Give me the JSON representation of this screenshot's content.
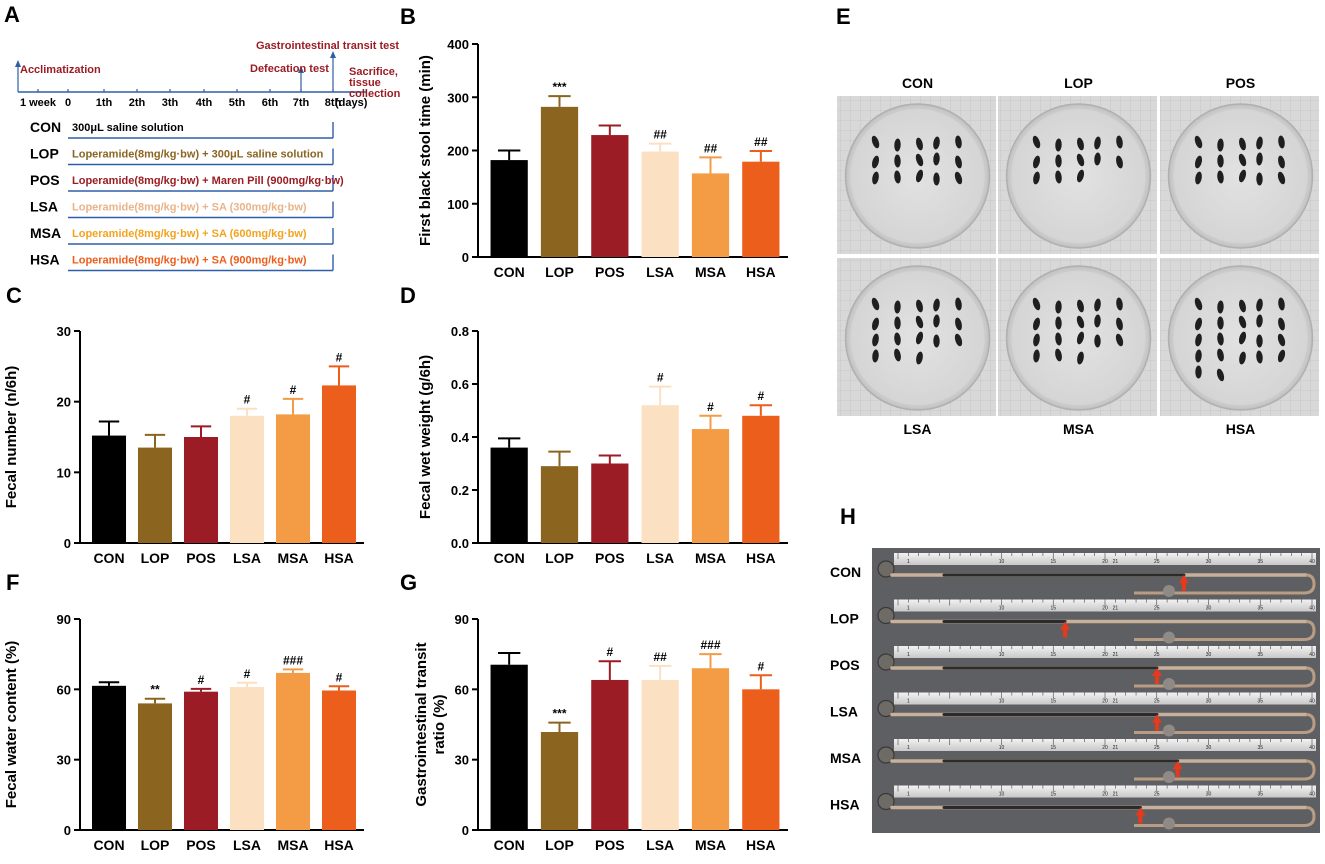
{
  "colors": {
    "CON": "#000000",
    "LOP": "#8B6520",
    "POS": "#9B1C24",
    "LSA": "#FCE0C2",
    "MSA": "#F39C45",
    "HSA": "#EC5E1B",
    "dark_red": "#9B1C24",
    "timeline_blue": "#2F5EA8",
    "arrow": "#E8391C"
  },
  "panel_a": {
    "letter": "A",
    "events": {
      "acclimatization": "Acclimatization",
      "gi_test": "Gastrointestinal transit test",
      "defecation": "Defecation test",
      "sacrifice_1": "Sacrifice,",
      "sacrifice_2": "tissue",
      "sacrifice_3": "collection"
    },
    "ticks": [
      "1 week",
      "0",
      "1th",
      "2th",
      "3th",
      "4th",
      "5th",
      "6th",
      "7th",
      "8th",
      "(days)"
    ],
    "groups": [
      {
        "name": "CON",
        "treatment": "300μL  saline solution",
        "color": "#000000"
      },
      {
        "name": "LOP",
        "treatment": "Loperamide(8mg/kg·bw) + 300μL  saline solution",
        "color": "#8B6520"
      },
      {
        "name": "POS",
        "treatment": "Loperamide(8mg/kg·bw) + Maren Pill (900mg/kg·bw)",
        "color": "#9B1C24"
      },
      {
        "name": "LSA",
        "treatment": "Loperamide(8mg/kg·bw) + SA (300mg/kg·bw)",
        "color": "#E8B48A"
      },
      {
        "name": "MSA",
        "treatment": "Loperamide(8mg/kg·bw) + SA (600mg/kg·bw)",
        "color": "#F2A41E"
      },
      {
        "name": "HSA",
        "treatment": "Loperamide(8mg/kg·bw) + SA (900mg/kg·bw)",
        "color": "#EC5E1B"
      }
    ]
  },
  "chart_data": [
    {
      "id": "B",
      "type": "bar",
      "ylabel": "First black stool time (min)",
      "ylim": [
        0,
        400
      ],
      "yticks": [
        0,
        100,
        200,
        300,
        400
      ],
      "categories": [
        "CON",
        "LOP",
        "POS",
        "LSA",
        "MSA",
        "HSA"
      ],
      "values": [
        182,
        282,
        229,
        198,
        157,
        179
      ],
      "errors": [
        18,
        20,
        18,
        15,
        30,
        20
      ],
      "sig": [
        "",
        "***",
        "",
        "##",
        "##",
        "##"
      ]
    },
    {
      "id": "C",
      "type": "bar",
      "ylabel": "Fecal  number (n/6h)",
      "ylim": [
        0,
        30
      ],
      "yticks": [
        0,
        10,
        20,
        30
      ],
      "categories": [
        "CON",
        "LOP",
        "POS",
        "LSA",
        "MSA",
        "HSA"
      ],
      "values": [
        15.2,
        13.5,
        15.0,
        18.0,
        18.2,
        22.3
      ],
      "errors": [
        2.0,
        1.8,
        1.5,
        1.0,
        2.2,
        2.7
      ],
      "sig": [
        "",
        "",
        "",
        "#",
        "#",
        "#"
      ]
    },
    {
      "id": "D",
      "type": "bar",
      "ylabel": "Fecal wet weight (g/6h)",
      "ylim": [
        0,
        0.8
      ],
      "yticks": [
        0.0,
        0.2,
        0.4,
        0.6,
        0.8
      ],
      "categories": [
        "CON",
        "LOP",
        "POS",
        "LSA",
        "MSA",
        "HSA"
      ],
      "values": [
        0.36,
        0.29,
        0.3,
        0.52,
        0.43,
        0.48
      ],
      "errors": [
        0.035,
        0.055,
        0.03,
        0.07,
        0.05,
        0.04
      ],
      "sig": [
        "",
        "",
        "",
        "#",
        "#",
        "#"
      ]
    },
    {
      "id": "F",
      "type": "bar",
      "ylabel": "Fecal  water content (%)",
      "ylim": [
        0,
        90
      ],
      "yticks": [
        0,
        30,
        60,
        90
      ],
      "categories": [
        "CON",
        "LOP",
        "POS",
        "LSA",
        "MSA",
        "HSA"
      ],
      "values": [
        61.5,
        54.0,
        59.0,
        61.0,
        67.0,
        59.5
      ],
      "errors": [
        1.5,
        2.0,
        1.2,
        1.8,
        1.5,
        1.8
      ],
      "sig": [
        "",
        "**",
        "#",
        "#",
        "###",
        "#"
      ]
    },
    {
      "id": "G",
      "type": "bar",
      "ylabel": "Gastrointestinal transit ratio (%)",
      "ylabel_lines": [
        "Gastrointestinal transit",
        "ratio (%)"
      ],
      "ylim": [
        0,
        90
      ],
      "yticks": [
        0,
        30,
        60,
        90
      ],
      "categories": [
        "CON",
        "LOP",
        "POS",
        "LSA",
        "MSA",
        "HSA"
      ],
      "values": [
        70.5,
        41.8,
        64.0,
        64.0,
        69.0,
        60.0
      ],
      "errors": [
        5.0,
        4.0,
        8.0,
        6.0,
        6.0,
        6.0
      ],
      "sig": [
        "",
        "***",
        "#",
        "##",
        "###",
        "#"
      ]
    }
  ],
  "panel_e": {
    "letter": "E",
    "top_labels": [
      "CON",
      "LOP",
      "POS"
    ],
    "bottom_labels": [
      "LSA",
      "MSA",
      "HSA"
    ],
    "pellet_counts": [
      15,
      13,
      15,
      18,
      18,
      22
    ]
  },
  "panel_h": {
    "letter": "H",
    "rows": [
      "CON",
      "LOP",
      "POS",
      "LSA",
      "MSA",
      "HSA"
    ],
    "transit_ratio": [
      0.705,
      0.418,
      0.64,
      0.64,
      0.69,
      0.6
    ],
    "ruler_ticks": [
      "1",
      "10",
      "15",
      "20",
      "21",
      "25",
      "30",
      "35",
      "40"
    ]
  }
}
